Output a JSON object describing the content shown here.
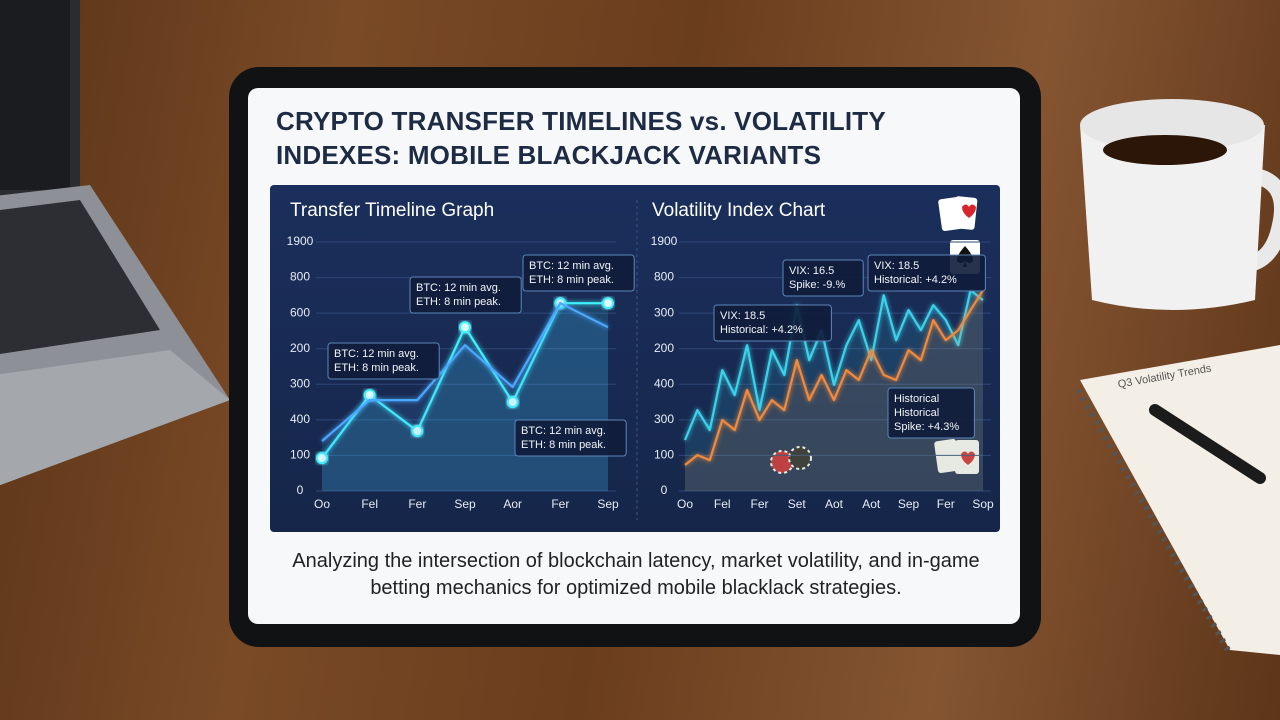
{
  "title": "CRYPTO TRANSFER TIMELINES vs. VOLATILITY INDEXES: MOBILE BLACKJACK VARIANTS",
  "caption": "Analyzing the intersection of blockchain latency, market volatility, and in-game betting mechanics for optimized mobile blacklack strategies.",
  "notebook": {
    "title": "Q3 Volatility Trends"
  },
  "chart_data": [
    {
      "type": "line",
      "title": "Transfer Timeline Graph",
      "categories": [
        "Oo",
        "Fel",
        "Fer",
        "Sep",
        "Aor",
        "Fer",
        "Sep"
      ],
      "series": [
        {
          "color": "#3ff3ff",
          "markers": true,
          "values": [
            185,
            539,
            337,
            921,
            500,
            1056,
            1056
          ]
        },
        {
          "color": "#4aa8ff",
          "markers": false,
          "values": [
            281,
            511,
            511,
            820,
            584,
            1056,
            921
          ]
        }
      ],
      "ylim": [
        0,
        1400
      ],
      "yticks": [
        0,
        {
          "value": 200,
          "label": "100"
        },
        {
          "value": 400,
          "label": "400"
        },
        {
          "value": 600,
          "label": "300"
        },
        {
          "value": 800,
          "label": "200"
        },
        {
          "value": 1000,
          "label": "600"
        },
        {
          "value": 1200,
          "label": "800"
        },
        {
          "value": 1400,
          "label": "1900"
        }
      ],
      "grid": true,
      "annotations": [
        [
          "BTC: 12 min avg.",
          "ETH: 8 min peak."
        ],
        [
          "BTC: 12 min avg.",
          "ETH: 8 min peak."
        ],
        [
          "BTC: 12 min avg.",
          "ETH: 8 min peak."
        ],
        [
          "BTC: 12 min avg.",
          "ETH: 8 min peak."
        ]
      ]
    },
    {
      "type": "line",
      "title": "Volatility Index Chart",
      "categories": [
        "Oo",
        null,
        null,
        "Fel",
        null,
        null,
        "Fer",
        null,
        null,
        "Set",
        null,
        null,
        "Aot",
        null,
        null,
        "Aot",
        null,
        null,
        "Sep",
        null,
        null,
        "Fer",
        null,
        null,
        "Sop"
      ],
      "series": [
        {
          "color": "#3ad3ea",
          "markers": false,
          "values": [
            287,
            455,
            343,
            680,
            539,
            820,
            455,
            792,
            652,
            1045,
            736,
            904,
            596,
            820,
            961,
            736,
            1101,
            848,
            1017,
            904,
            1045,
            961,
            820,
            1129,
            1073
          ]
        },
        {
          "color": "#f08a3c",
          "markers": false,
          "values": [
            146,
            202,
            174,
            399,
            343,
            568,
            399,
            511,
            455,
            736,
            511,
            652,
            511,
            680,
            624,
            792,
            652,
            624,
            792,
            736,
            961,
            848,
            904,
            1017,
            1129
          ]
        }
      ],
      "ylim": [
        0,
        1400
      ],
      "yticks": [
        0,
        {
          "value": 200,
          "label": "100"
        },
        {
          "value": 400,
          "label": "300"
        },
        {
          "value": 600,
          "label": "400"
        },
        {
          "value": 800,
          "label": "200"
        },
        {
          "value": 1000,
          "label": "300"
        },
        {
          "value": 1200,
          "label": "800"
        },
        {
          "value": 1400,
          "label": "1900"
        }
      ],
      "grid": true,
      "annotations": [
        [
          "VIX: 16.5",
          "Spike: -9.%"
        ],
        [
          "VIX: 18.5",
          "Historical: +4.2%"
        ],
        [
          "VIX: 18.5",
          "Historical: +4.2%"
        ],
        [
          "Historical",
          "Historical",
          "Spike: +4.3%"
        ]
      ]
    }
  ]
}
